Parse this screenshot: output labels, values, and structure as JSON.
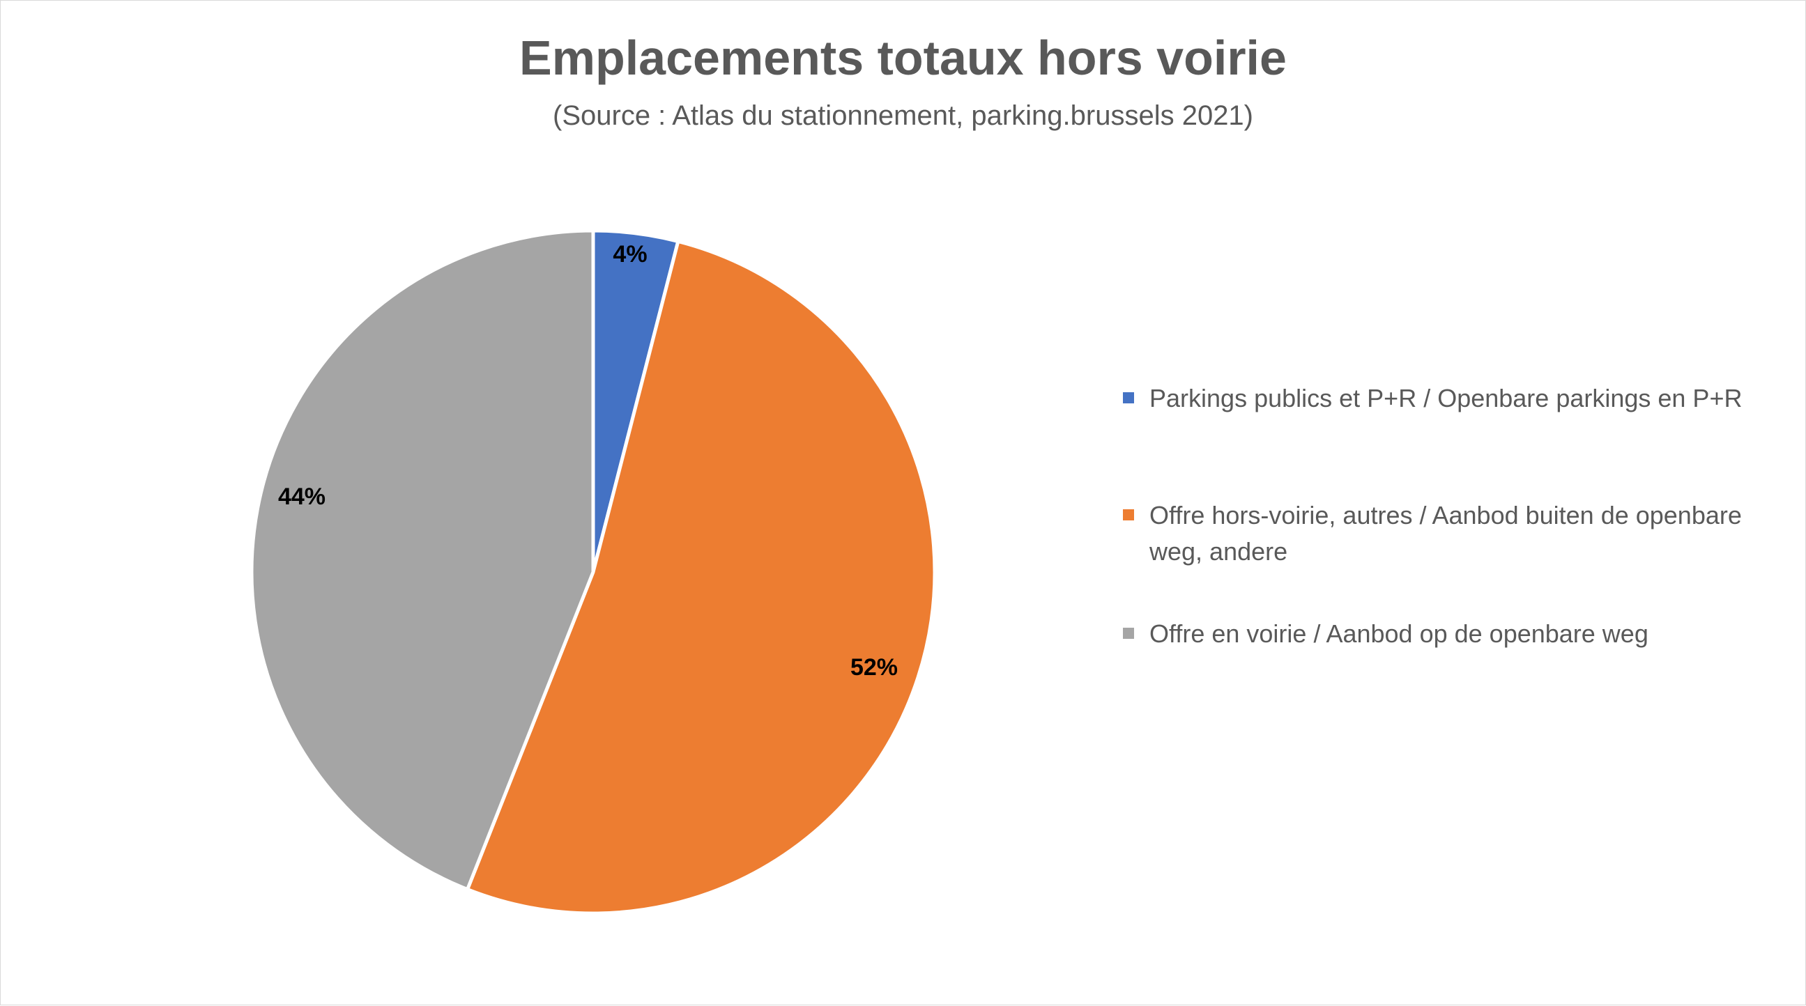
{
  "chart_data": {
    "type": "pie",
    "title": "Emplacements totaux hors voirie",
    "subtitle": "(Source : Atlas du stationnement, parking.brussels 2021)",
    "legend_position": "right",
    "slices": [
      {
        "label": "Parkings publics et P+R / Openbare parkings en P+R",
        "value": 4,
        "data_label": "4%",
        "color": "#4472c4"
      },
      {
        "label": "Offre hors-voirie, autres / Aanbod buiten de openbare weg, andere",
        "value": 52,
        "data_label": "52%",
        "color": "#ed7d31"
      },
      {
        "label": "Offre en voirie / Aanbod op de openbare weg",
        "value": 44,
        "data_label": "44%",
        "color": "#a5a5a5"
      }
    ]
  }
}
